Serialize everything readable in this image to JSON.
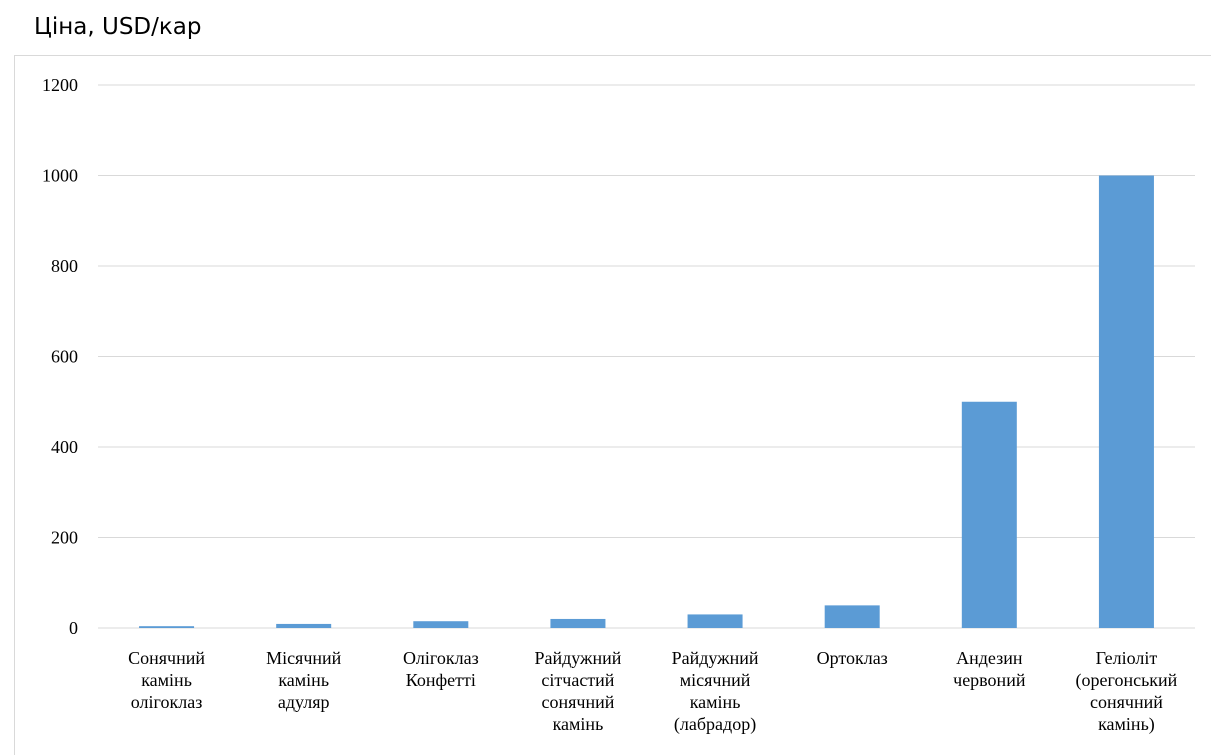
{
  "chart_data": {
    "type": "bar",
    "title": "Ціна, USD/кар",
    "categories": [
      [
        "Сонячний",
        "камінь",
        "олігоклаз"
      ],
      [
        "Місячний",
        "камінь",
        "адуляр"
      ],
      [
        "Олігоклаз",
        "Конфетті"
      ],
      [
        "Райдужний",
        "сітчастий",
        "сонячний",
        "камінь"
      ],
      [
        "Райдужний",
        "місячний",
        "камінь",
        "(лабрадор)"
      ],
      [
        "Ортоклаз"
      ],
      [
        "Андезин",
        "червоний"
      ],
      [
        "Геліоліт",
        "(орегонський",
        "сонячний",
        "камінь)"
      ]
    ],
    "values": [
      4,
      9,
      15,
      20,
      30,
      50,
      500,
      1000
    ],
    "ylim": [
      0,
      1200
    ],
    "yticks": [
      0,
      200,
      400,
      600,
      800,
      1000,
      1200
    ],
    "grid": true,
    "bar_color": "#5b9bd5",
    "grid_color": "#d9d9d9"
  }
}
